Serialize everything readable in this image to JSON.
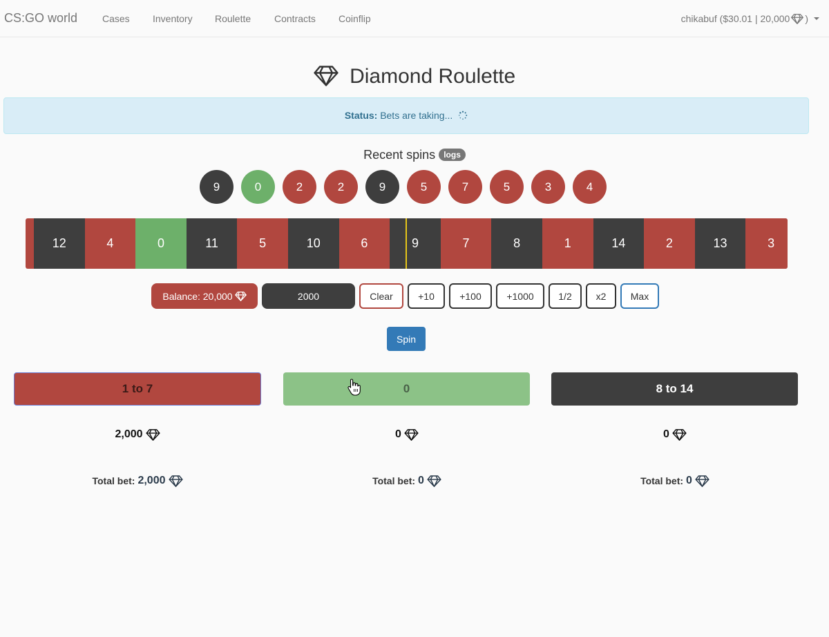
{
  "nav": {
    "brand": "CS:GO world",
    "links": [
      "Cases",
      "Inventory",
      "Roulette",
      "Contracts",
      "Coinflip"
    ],
    "user": "chikabuf ($30.01 | 20,000",
    "user_suffix": ")"
  },
  "page": {
    "title": "Diamond Roulette"
  },
  "status": {
    "label": "Status:",
    "text": "Bets are taking..."
  },
  "recent": {
    "title": "Recent spins",
    "logs_badge": "logs",
    "spins": [
      {
        "n": "9",
        "color": "black"
      },
      {
        "n": "0",
        "color": "green"
      },
      {
        "n": "2",
        "color": "red"
      },
      {
        "n": "2",
        "color": "red"
      },
      {
        "n": "9",
        "color": "black"
      },
      {
        "n": "5",
        "color": "red"
      },
      {
        "n": "7",
        "color": "red"
      },
      {
        "n": "5",
        "color": "red"
      },
      {
        "n": "3",
        "color": "red"
      },
      {
        "n": "4",
        "color": "red"
      }
    ]
  },
  "strip": {
    "cells": [
      {
        "n": "12",
        "color": "black"
      },
      {
        "n": "4",
        "color": "red"
      },
      {
        "n": "0",
        "color": "green"
      },
      {
        "n": "11",
        "color": "black"
      },
      {
        "n": "5",
        "color": "red"
      },
      {
        "n": "10",
        "color": "black"
      },
      {
        "n": "6",
        "color": "red"
      },
      {
        "n": "9",
        "color": "black"
      },
      {
        "n": "7",
        "color": "red"
      },
      {
        "n": "8",
        "color": "black"
      },
      {
        "n": "1",
        "color": "red"
      },
      {
        "n": "14",
        "color": "black"
      },
      {
        "n": "2",
        "color": "red"
      },
      {
        "n": "13",
        "color": "black"
      },
      {
        "n": "3",
        "color": "red"
      }
    ]
  },
  "controls": {
    "balance": "Balance: 20,000",
    "amount": "2000",
    "buttons": [
      {
        "label": "Clear",
        "name": "clear-button"
      },
      {
        "label": "+10",
        "name": "plus-10-button"
      },
      {
        "label": "+100",
        "name": "plus-100-button"
      },
      {
        "label": "+1000",
        "name": "plus-1000-button"
      },
      {
        "label": "1/2",
        "name": "half-button"
      },
      {
        "label": "x2",
        "name": "double-button"
      },
      {
        "label": "Max",
        "name": "max-button"
      }
    ],
    "spin": "Spin"
  },
  "bets": [
    {
      "label": "1 to 7",
      "amount": "2,000",
      "total_label": "Total bet:",
      "total": "2,000"
    },
    {
      "label": "0",
      "amount": "0",
      "total_label": "Total bet:",
      "total": "0"
    },
    {
      "label": "8 to 14",
      "amount": "0",
      "total_label": "Total bet:",
      "total": "0"
    }
  ],
  "colors": {
    "red": "#b1473f",
    "black": "#3e3e3e",
    "green": "#6db06a",
    "primary": "#337ab7",
    "status_bg": "#d9edf7"
  },
  "icons": [
    "diamond-icon",
    "caret-down-icon",
    "loading-spinner-icon",
    "hand-cursor-icon"
  ]
}
